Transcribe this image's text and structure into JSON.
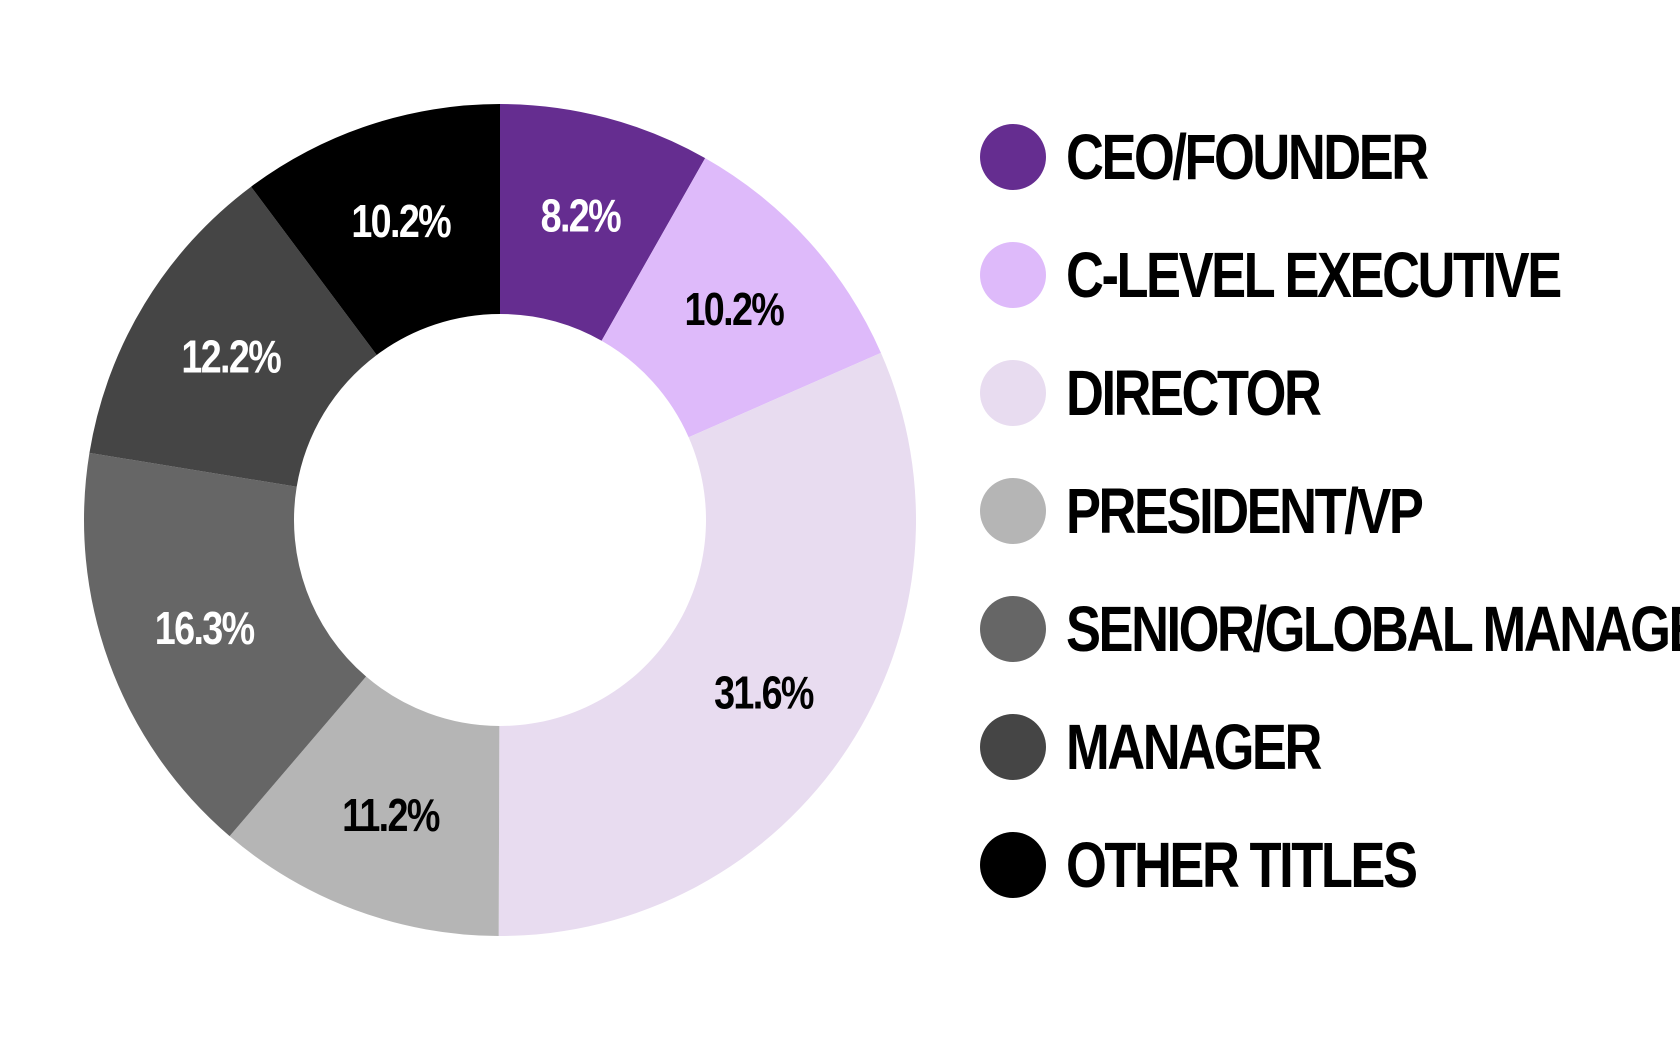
{
  "chart_data": {
    "type": "pie",
    "subtype": "donut",
    "title": "",
    "categories": [
      "CEO/FOUNDER",
      "C-LEVEL EXECUTIVE",
      "DIRECTOR",
      "PRESIDENT/VP",
      "SENIOR/GLOBAL MANAGER",
      "MANAGER",
      "OTHER TITLES"
    ],
    "values": [
      8.2,
      10.2,
      31.6,
      11.2,
      16.3,
      12.2,
      10.2
    ],
    "value_labels": [
      "8.2%",
      "10.2%",
      "31.6%",
      "11.2%",
      "16.3%",
      "12.2%",
      "10.2%"
    ],
    "colors": [
      "#652d90",
      "#debafa",
      "#e8dcf0",
      "#b5b5b5",
      "#666666",
      "#454545",
      "#000000"
    ],
    "label_colors": [
      "#ffffff",
      "#000000",
      "#000000",
      "#000000",
      "#ffffff",
      "#ffffff",
      "#ffffff"
    ],
    "legend_position": "right",
    "start_angle": "top",
    "direction": "clockwise"
  }
}
